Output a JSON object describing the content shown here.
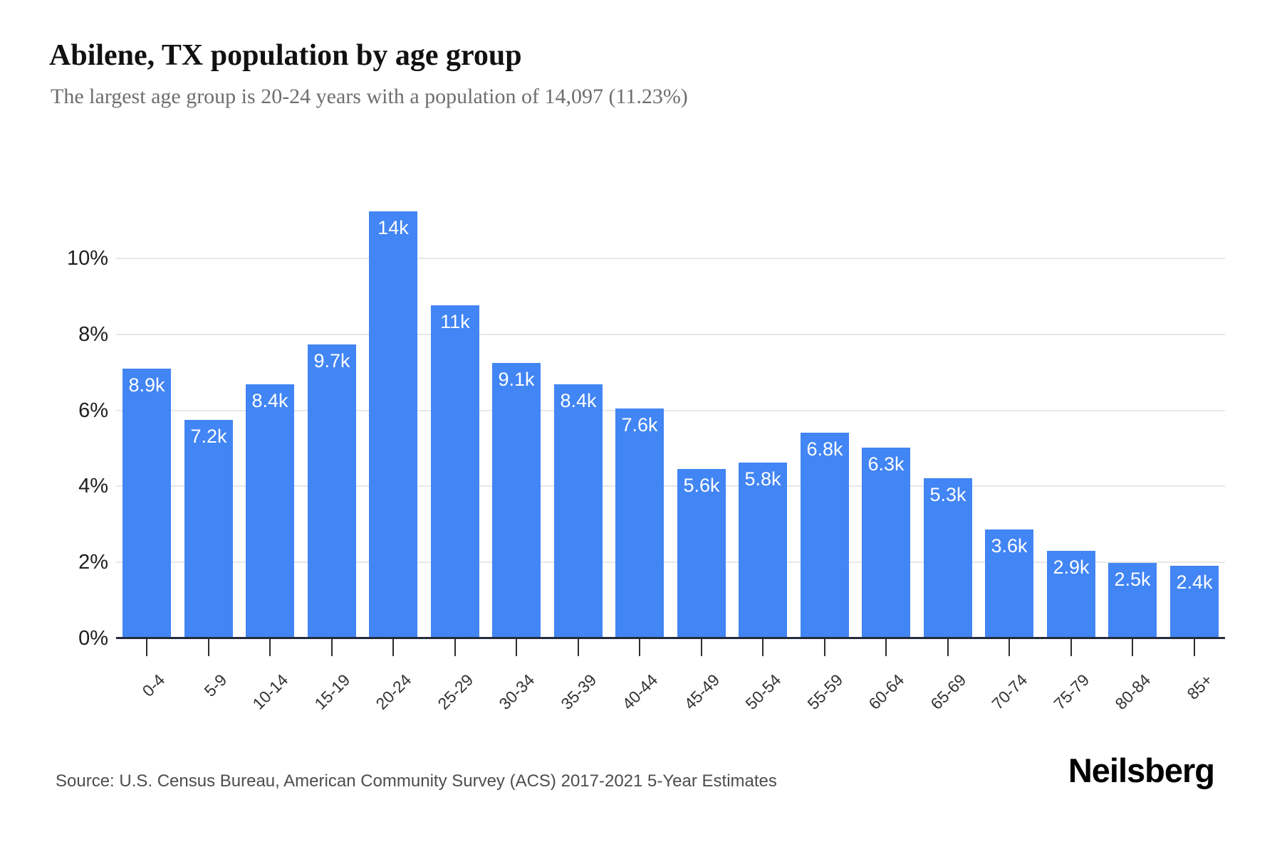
{
  "header": {
    "title": "Abilene, TX population by age group",
    "subtitle": "The largest age group is 20-24 years with a population of 14,097 (11.23%)"
  },
  "chart_data": {
    "type": "bar",
    "title": "Abilene, TX population by age group",
    "subtitle": "The largest age group is 20-24 years with a population of 14,097 (11.23%)",
    "categories": [
      "0-4",
      "5-9",
      "10-14",
      "15-19",
      "20-24",
      "25-29",
      "30-34",
      "35-39",
      "40-44",
      "45-49",
      "50-54",
      "55-59",
      "60-64",
      "65-69",
      "70-74",
      "75-79",
      "80-84",
      "85+"
    ],
    "bar_labels": [
      "8.9k",
      "7.2k",
      "8.4k",
      "9.7k",
      "14k",
      "11k",
      "9.1k",
      "8.4k",
      "7.6k",
      "5.6k",
      "5.8k",
      "6.8k",
      "6.3k",
      "5.3k",
      "3.6k",
      "2.9k",
      "2.5k",
      "2.4k"
    ],
    "values_pct": [
      7.09,
      5.74,
      6.69,
      7.73,
      11.23,
      8.76,
      7.25,
      6.69,
      6.05,
      4.46,
      4.62,
      5.42,
      5.02,
      4.22,
      2.87,
      2.31,
      1.99,
      1.91
    ],
    "largest_group": {
      "category": "20-24",
      "population": "14,097",
      "share": "11.23%"
    },
    "xlabel": "",
    "ylabel": "",
    "y_tick_values": [
      0,
      2,
      4,
      6,
      8,
      10
    ],
    "y_tick_labels": [
      "0%",
      "2%",
      "4%",
      "6%",
      "8%",
      "10%"
    ],
    "ylim": [
      0,
      11.4
    ],
    "grid": "horizontal",
    "legend": "none",
    "colors": {
      "bar": "#4285f4",
      "bar_label_text": "#ffffff",
      "gridline": "#e7e7e7",
      "axis_line": "#252a3d",
      "tick": "#2e2e2e",
      "y_label_text": "#1e1e1e",
      "x_label_text": "#333333"
    }
  },
  "footer": {
    "source": "Source: U.S. Census Bureau, American Community Survey (ACS) 2017-2021 5-Year Estimates",
    "brand": "Neilsberg"
  }
}
